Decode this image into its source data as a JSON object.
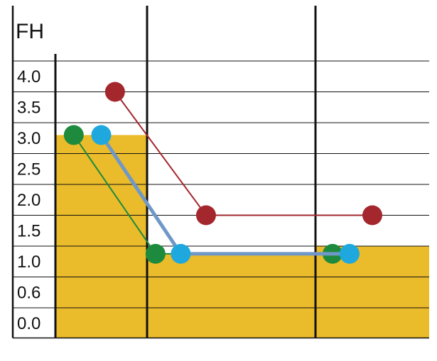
{
  "chart_data": {
    "type": "line",
    "ylabel": "FH",
    "y_ticks": [
      "4.0",
      "3.5",
      "3.0",
      "2.5",
      "2.0",
      "1.5",
      "1.0",
      "0.6",
      "0.0"
    ],
    "x_sections": 3,
    "bars": {
      "color": "#eabb2a",
      "values": [
        2.8,
        0.9,
        1.0
      ]
    },
    "series": [
      {
        "color": "#a3272d",
        "points": [
          {
            "section": 1,
            "offset": 0.65,
            "level": 3.5
          },
          {
            "section": 2,
            "offset": 0.35,
            "level": 1.5
          },
          {
            "section": 3,
            "offset": 0.5,
            "level": 1.5
          }
        ]
      },
      {
        "color": "#1d8a3e",
        "points": [
          {
            "section": 1,
            "offset": 0.2,
            "level": 2.8
          },
          {
            "section": 2,
            "offset": 0.05,
            "level": 0.9
          },
          {
            "section": 3,
            "offset": 0.15,
            "level": 0.9
          }
        ]
      },
      {
        "color": "#1ea8dd",
        "line_color": "#6f98c9",
        "points": [
          {
            "section": 1,
            "offset": 0.5,
            "level": 2.8
          },
          {
            "section": 2,
            "offset": 0.2,
            "level": 0.9
          },
          {
            "section": 3,
            "offset": 0.3,
            "level": 0.9
          }
        ]
      }
    ],
    "grid": true,
    "legend": "none"
  }
}
